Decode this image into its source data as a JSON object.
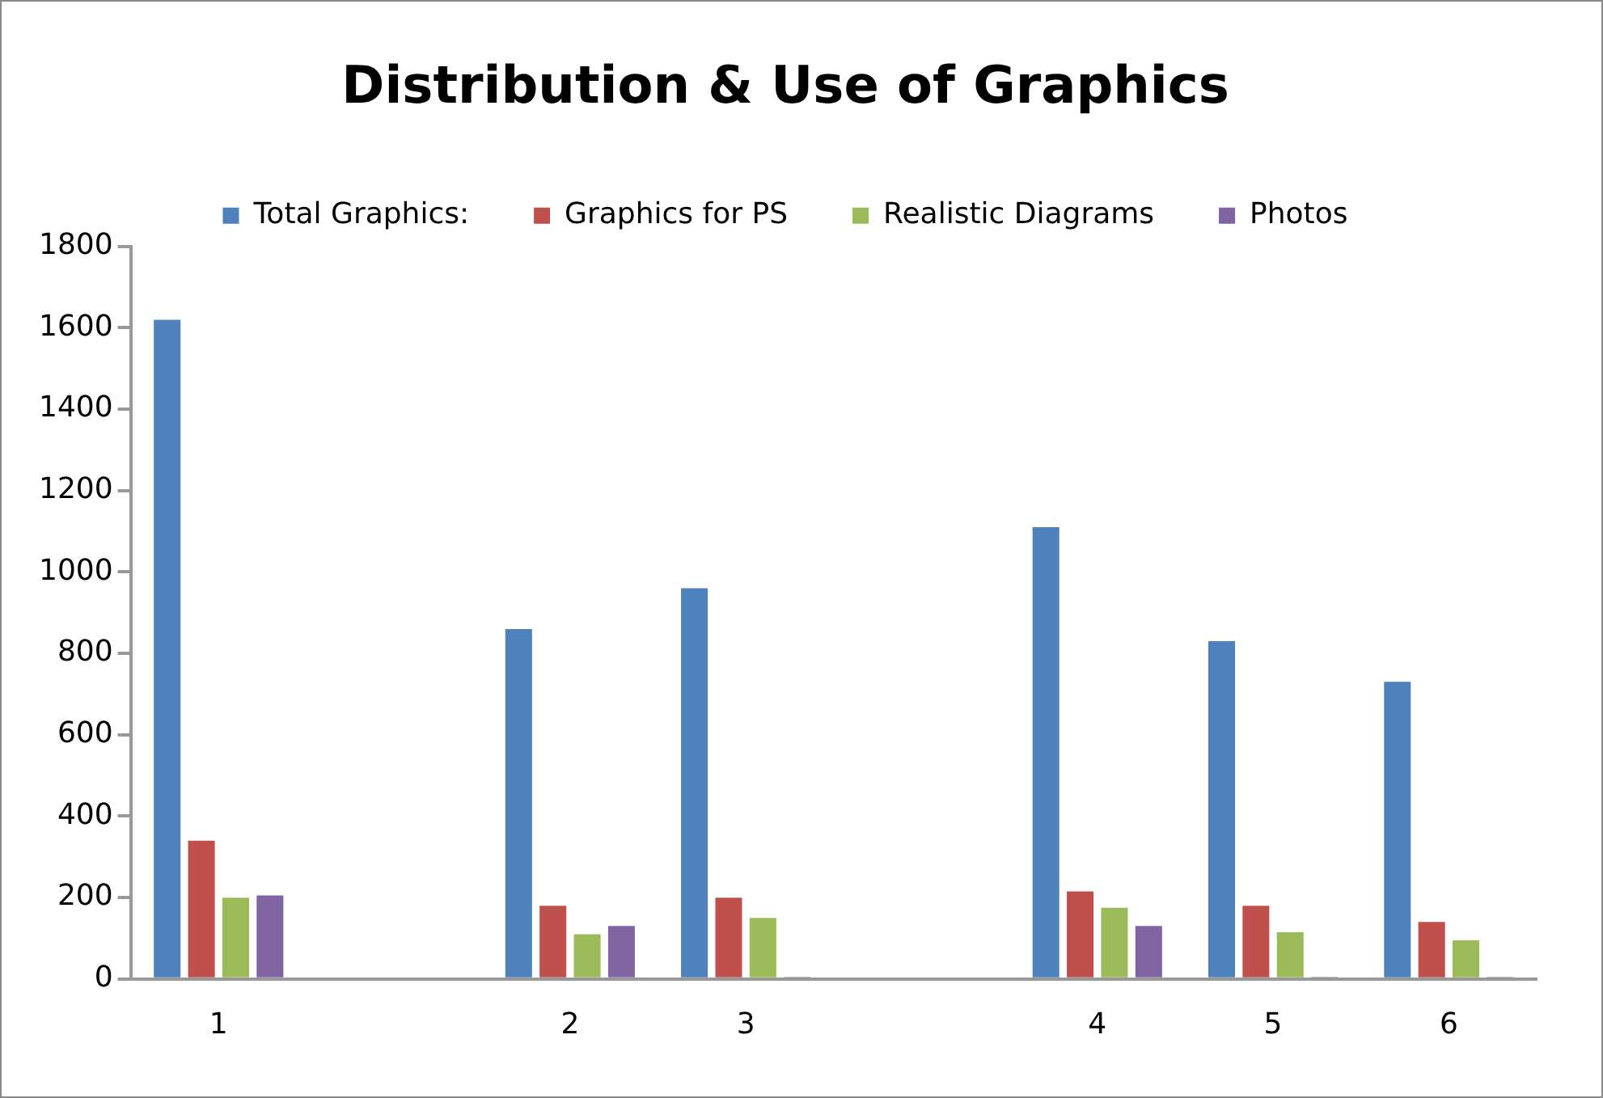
{
  "chart_data": {
    "type": "bar",
    "title": "Distribution & Use of Graphics",
    "categories": [
      "1",
      null,
      "2",
      "3",
      null,
      "4",
      "5",
      "6"
    ],
    "series": [
      {
        "name": "Total Graphics:",
        "color": "#4f81bd",
        "values": [
          1620,
          null,
          860,
          960,
          null,
          1110,
          830,
          730
        ]
      },
      {
        "name": "Graphics for PS",
        "color": "#c0504d",
        "values": [
          340,
          null,
          180,
          200,
          null,
          215,
          180,
          140
        ]
      },
      {
        "name": "Realistic Diagrams",
        "color": "#9bbb59",
        "values": [
          200,
          null,
          110,
          150,
          null,
          175,
          115,
          95
        ]
      },
      {
        "name": "Photos",
        "color": "#8064a2",
        "values": [
          205,
          null,
          130,
          5,
          null,
          130,
          5,
          5
        ]
      }
    ],
    "ylim": [
      0,
      1800
    ],
    "yticks": [
      0,
      200,
      400,
      600,
      800,
      1000,
      1200,
      1400,
      1600,
      1800
    ],
    "grid": false,
    "legend": "top"
  }
}
